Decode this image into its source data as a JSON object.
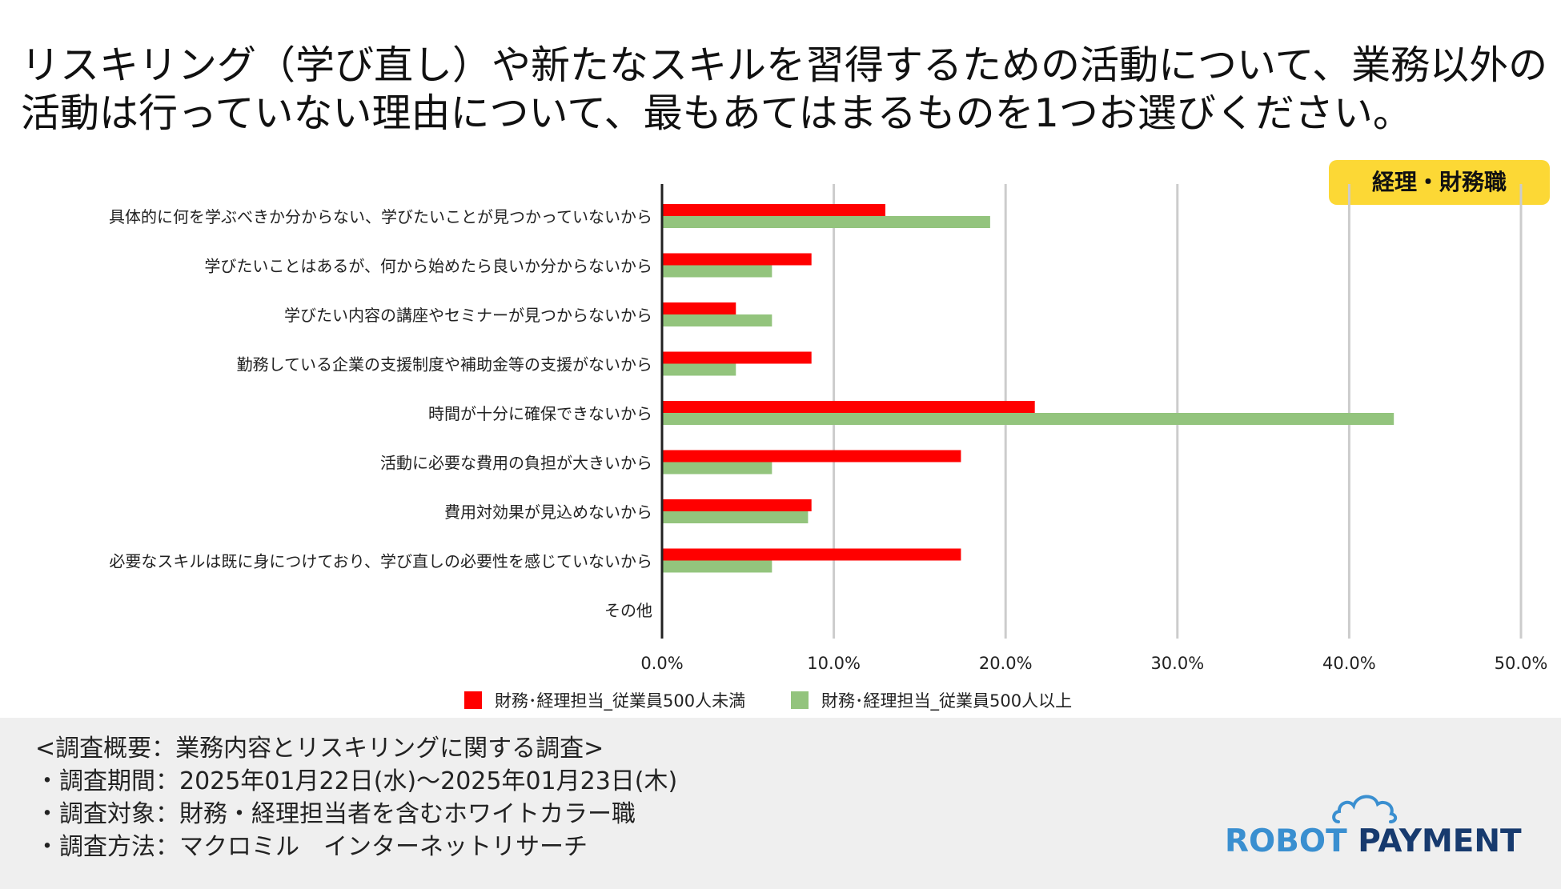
{
  "title": "リスキリング（学び直し）や新たなスキルを習得するための活動について、業務以外の活動は行っていない理由について、最もあてはまるものを1つお選びください。",
  "badge": "経理・財務職",
  "colors": {
    "series1": "#ff0000",
    "series2": "#93c47d",
    "badge_bg": "#fcd835",
    "footer_bg": "#efefef",
    "grid": "#cccccc"
  },
  "chart_data": {
    "type": "bar",
    "orientation": "horizontal",
    "categories": [
      "具体的に何を学ぶべきか分からない、学びたいことが見つかっていないから",
      "学びたいことはあるが、何から始めたら良いか分からないから",
      "学びたい内容の講座やセミナーが見つからないから",
      "勤務している企業の支援制度や補助金等の支援がないから",
      "時間が十分に確保できないから",
      "活動に必要な費用の負担が大きいから",
      "費用対効果が見込めないから",
      "必要なスキルは既に身につけており、学び直しの必要性を感じていないから",
      "その他"
    ],
    "series": [
      {
        "name": "財務･経理担当_従業員500人未満",
        "values": [
          13.0,
          8.7,
          4.3,
          8.7,
          21.7,
          17.4,
          8.7,
          17.4,
          0.0
        ]
      },
      {
        "name": "財務･経理担当_従業員500人以上",
        "values": [
          19.1,
          6.4,
          6.4,
          4.3,
          42.6,
          6.4,
          8.5,
          6.4,
          0.0
        ]
      }
    ],
    "xlim": [
      0,
      50
    ],
    "ticks": [
      "0.0%",
      "10.0%",
      "20.0%",
      "30.0%",
      "40.0%",
      "50.0%"
    ],
    "tick_values": [
      0,
      10,
      20,
      30,
      40,
      50
    ],
    "grid": true,
    "legend_position": "bottom"
  },
  "footer": {
    "lines": [
      "<調査概要：業務内容とリスキリングに関する調査>",
      "・調査期間：2025年01月22日(水)〜2025年01月23日(木)",
      "・調査対象：財務・経理担当者を含むホワイトカラー職",
      "・調査方法：マクロミル　インターネットリサーチ"
    ]
  },
  "logo": {
    "word1": "ROBOT",
    "word2": " PAYMENT"
  }
}
